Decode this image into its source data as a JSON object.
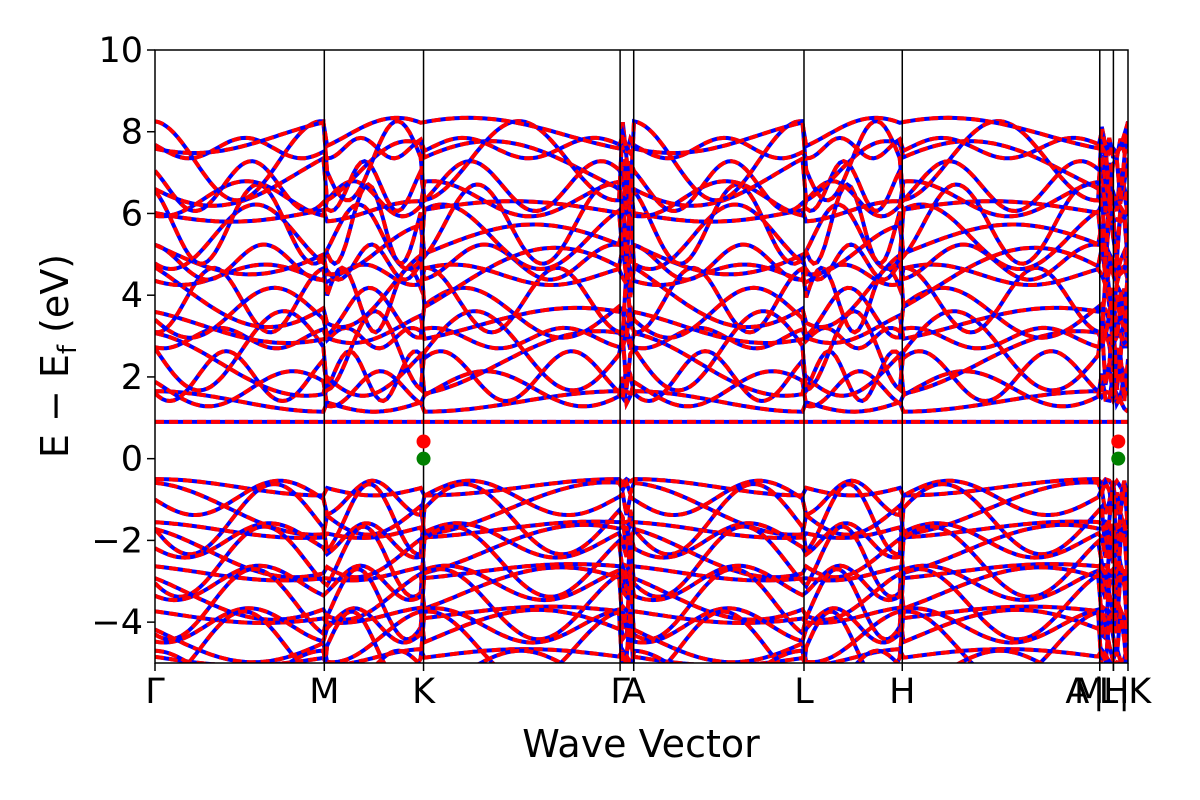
{
  "chart_data": {
    "type": "line",
    "title": "",
    "xlabel": "Wave Vector",
    "ylabel": "E − E_f (eV)",
    "ylabel_parts": {
      "main": "E − E",
      "sub": "f",
      "tail": " (eV)"
    },
    "ylim": [
      -5,
      10
    ],
    "yticks": [
      -4,
      -2,
      0,
      2,
      4,
      6,
      8,
      10
    ],
    "ytick_labels": [
      "−4",
      "−2",
      "0",
      "2",
      "4",
      "6",
      "8",
      "10"
    ],
    "xlim": [
      0,
      1
    ],
    "kpoints": [
      {
        "label": "Γ",
        "x": 0.0
      },
      {
        "label": "M",
        "x": 0.174
      },
      {
        "label": "K",
        "x": 0.276
      },
      {
        "label": "Γ",
        "x": 0.478
      },
      {
        "label": "A",
        "x": 0.492
      },
      {
        "label": "L",
        "x": 0.667
      },
      {
        "label": "H",
        "x": 0.768
      },
      {
        "label": "A",
        "x": 0.971
      },
      {
        "label": "M",
        "x": 0.971
      },
      {
        "label": "L",
        "x": 0.985
      },
      {
        "label": "H",
        "x": 0.985
      },
      {
        "label": "K",
        "x": 1.0
      }
    ],
    "xtick_labels": [
      "Γ",
      "M",
      "K",
      "Γ",
      "A",
      "L",
      "H",
      "A",
      "M",
      "|",
      "L",
      "H",
      "|",
      "K"
    ],
    "segment_lines": [
      0.174,
      0.276,
      0.478,
      0.492,
      0.667,
      0.768,
      0.971,
      0.985
    ],
    "series": [
      {
        "name": "",
        "color": "#0000ff",
        "style": "solid"
      },
      {
        "name": "",
        "color": "#ff0000",
        "style": "dashed"
      }
    ],
    "markers": [
      {
        "label": "CBM",
        "x": 0.276,
        "y": 0.42,
        "color": "#ff0000"
      },
      {
        "label": "VBM",
        "x": 0.276,
        "y": 0.0,
        "color": "#008000"
      },
      {
        "label": "CBM",
        "x": 0.99,
        "y": 0.42,
        "color": "#ff0000"
      },
      {
        "label": "VBM",
        "x": 0.99,
        "y": 0.0,
        "color": "#008000"
      }
    ],
    "flat_band_y": 0.9,
    "grid": false,
    "legend": "none"
  }
}
